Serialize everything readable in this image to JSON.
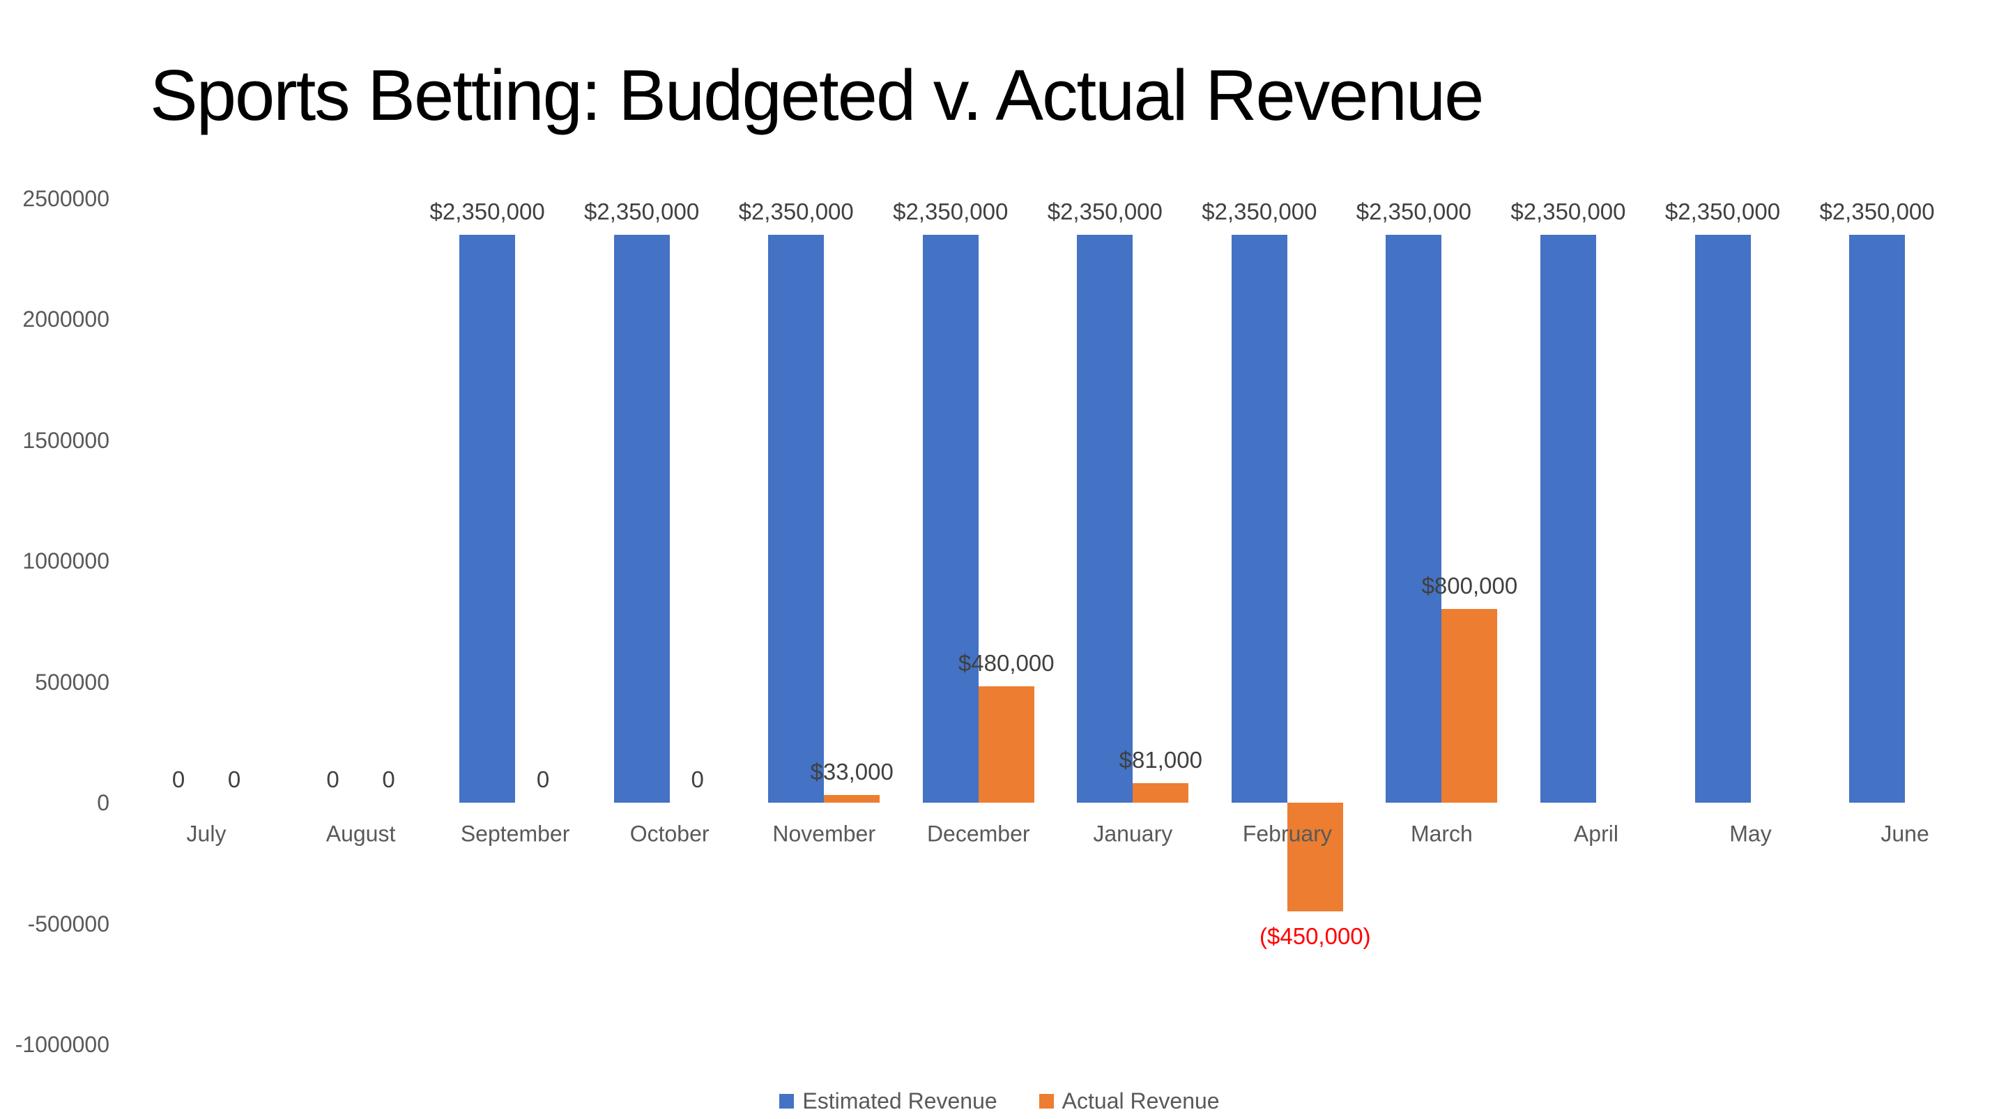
{
  "chart_data": {
    "type": "bar",
    "title": "Sports Betting: Budgeted v. Actual Revenue",
    "categories": [
      "July",
      "August",
      "September",
      "October",
      "November",
      "December",
      "January",
      "February",
      "March",
      "April",
      "May",
      "June"
    ],
    "series": [
      {
        "name": "Estimated Revenue",
        "color": "#4472C4",
        "values": [
          0,
          0,
          2350000,
          2350000,
          2350000,
          2350000,
          2350000,
          2350000,
          2350000,
          2350000,
          2350000,
          2350000
        ],
        "labels": [
          "0",
          "0",
          "$2,350,000",
          "$2,350,000",
          "$2,350,000",
          "$2,350,000",
          "$2,350,000",
          "$2,350,000",
          "$2,350,000",
          "$2,350,000",
          "$2,350,000",
          "$2,350,000"
        ]
      },
      {
        "name": "Actual Revenue",
        "color": "#ED7D31",
        "values": [
          0,
          0,
          0,
          0,
          33000,
          480000,
          81000,
          -450000,
          800000,
          null,
          null,
          null
        ],
        "labels": [
          "0",
          "0",
          "0",
          "0",
          "$33,000",
          "$480,000",
          "$81,000",
          "($450,000)",
          "$800,000",
          null,
          null,
          null
        ]
      }
    ],
    "y_axis": {
      "ticks": [
        2500000,
        2000000,
        1500000,
        1000000,
        500000,
        0,
        -500000,
        -1000000
      ],
      "tick_labels": [
        "2500000",
        "2000000",
        "1500000",
        "1000000",
        "500000",
        "0",
        "-500000",
        "-1000000"
      ]
    },
    "ylim": [
      -1000000,
      2500000
    ],
    "gridlines": false,
    "legend_position": "bottom",
    "colors": {
      "data_label": "#404040",
      "negative_data_label": "#FF0000",
      "axis_text": "#595959",
      "title_text": "#000000"
    }
  }
}
